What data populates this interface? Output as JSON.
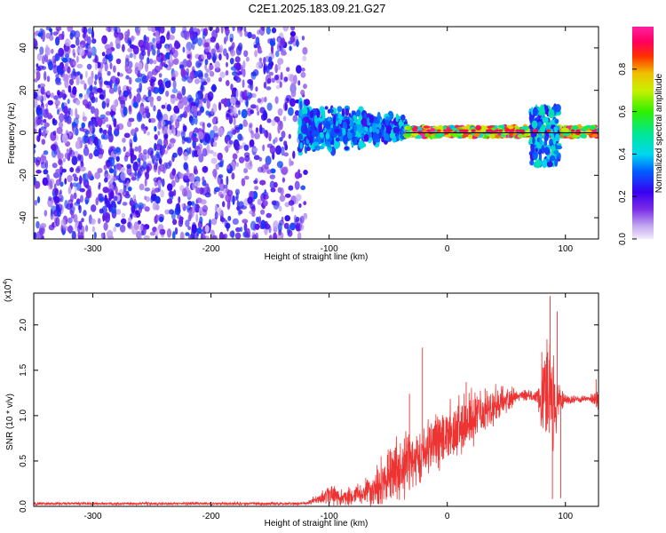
{
  "figure_title": "C2E1.2025.183.09.21.G27",
  "chart_data": [
    {
      "type": "heatmap",
      "title": "C2E1.2025.183.09.21.G27",
      "xlabel": "Height of straight line (km)",
      "ylabel": "Frequency (Hz)",
      "xlim": [
        -350,
        128
      ],
      "ylim": [
        -50,
        50
      ],
      "x_ticks": [
        -300,
        -200,
        -100,
        0,
        100
      ],
      "y_ticks": [
        -40,
        -20,
        0,
        20,
        40
      ],
      "x_tick_labels": [
        "-300",
        "-200",
        "-100",
        "0",
        "100"
      ],
      "y_tick_labels": [
        "-40",
        "-20",
        "0",
        "20",
        "40"
      ],
      "colorbar": {
        "label": "Normalized spectral amplitude",
        "range": [
          0,
          1
        ],
        "ticks": [
          "0.0",
          "0.2",
          "0.4",
          "0.6",
          "0.8"
        ],
        "colormap": "rainbow (white/violet → blue → cyan → green → yellow → red → magenta)"
      },
      "features": [
        {
          "x_range": [
            -350,
            -120
          ],
          "f_range": [
            -50,
            50
          ],
          "amplitude": [
            0.05,
            0.3
          ],
          "desc": "diffuse violet speckle"
        },
        {
          "x_range": [
            -125,
            -35
          ],
          "f_range": [
            -15,
            18
          ],
          "amplitude": [
            0.2,
            0.45
          ],
          "desc": "blue/cyan cluster"
        },
        {
          "x_range": [
            -35,
            128
          ],
          "f_range": [
            -2,
            3
          ],
          "amplitude": [
            0.6,
            1.0
          ],
          "desc": "narrow line near 0 Hz, green to red"
        },
        {
          "x_range": [
            70,
            95
          ],
          "f_range": [
            -15,
            12
          ],
          "amplitude": [
            0.2,
            0.5
          ],
          "desc": "bursts near 80-95 km"
        }
      ]
    },
    {
      "type": "line",
      "xlabel": "Height of straight line (km)",
      "ylabel": "SNR (10 * v/v)",
      "y_scale_label": "(x10",
      "y_scale_exp": "4",
      "xlim": [
        -350,
        128
      ],
      "ylim": [
        0,
        23500
      ],
      "x_ticks": [
        -300,
        -200,
        -100,
        0,
        100
      ],
      "y_ticks": [
        0,
        5000,
        10000,
        15000,
        20000
      ],
      "x_tick_labels": [
        "-300",
        "-200",
        "-100",
        "0",
        "100"
      ],
      "y_tick_labels": [
        "0.0",
        "0.5",
        "1.0",
        "1.5",
        "2.0"
      ],
      "series": [
        {
          "color": "#ee3333",
          "envelope": {
            "x": [
              -350,
              -120,
              -110,
              -100,
              -90,
              -80,
              -70,
              -60,
              -50,
              -40,
              -30,
              -20,
              -10,
              0,
              10,
              20,
              30,
              40,
              50,
              60,
              70,
              75,
              80,
              85,
              90,
              95,
              100,
              110,
              120,
              128
            ],
            "mean": [
              300,
              300,
              800,
              1300,
              1000,
              1100,
              1400,
              2200,
              3300,
              4600,
              5000,
              6200,
              7200,
              8000,
              8800,
              9600,
              10200,
              10800,
              11800,
              12300,
              12200,
              12200,
              12000,
              12500,
              11000,
              12000,
              11800,
              11800,
              11900,
              11800
            ],
            "amp": [
              200,
              200,
              700,
              1500,
              1200,
              1200,
              1800,
              2800,
              3500,
              4500,
              4000,
              4500,
              4500,
              4000,
              3800,
              3800,
              3200,
              2800,
              1800,
              800,
              700,
              900,
              4000,
              7500,
              7000,
              2500,
              700,
              400,
              400,
              1500
            ]
          },
          "spikes": [
            {
              "x": -21,
              "y": 17500
            },
            {
              "x": -32,
              "y": 12400
            },
            {
              "x": 16,
              "y": 13700
            },
            {
              "x": 32,
              "y": 13000
            },
            {
              "x": 80,
              "y": 17000
            },
            {
              "x": 87,
              "y": 23200
            },
            {
              "x": 89,
              "y": 800
            },
            {
              "x": 93,
              "y": 21500
            },
            {
              "x": 96,
              "y": 900
            },
            {
              "x": 126,
              "y": 14000
            }
          ]
        }
      ]
    }
  ]
}
